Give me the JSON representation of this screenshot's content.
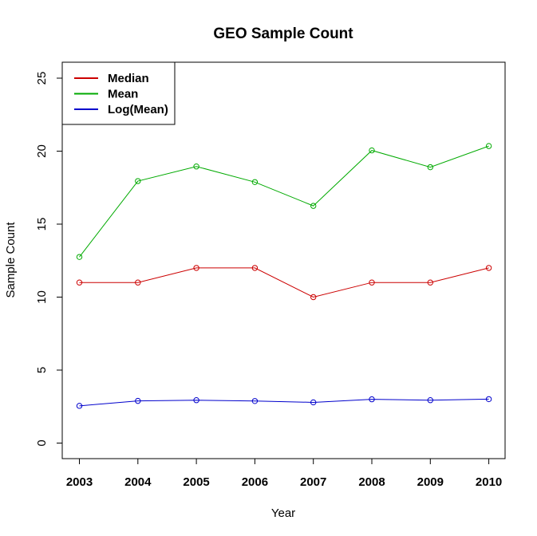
{
  "chart_data": {
    "type": "line",
    "title": "GEO Sample Count",
    "xlabel": "Year",
    "ylabel": "Sample Count",
    "categories": [
      "2003",
      "2004",
      "2005",
      "2006",
      "2007",
      "2008",
      "2009",
      "2010"
    ],
    "series": [
      {
        "name": "Median",
        "color": "#cc0000",
        "values": [
          11,
          11,
          12,
          12,
          10,
          11,
          11,
          12
        ]
      },
      {
        "name": "Mean",
        "color": "#00aa00",
        "values": [
          12.75,
          17.95,
          18.95,
          17.88,
          16.25,
          20.05,
          18.9,
          20.35
        ]
      },
      {
        "name": "Log(Mean)",
        "color": "#0000cc",
        "values": [
          2.55,
          2.89,
          2.94,
          2.88,
          2.79,
          3.0,
          2.94,
          3.01
        ]
      }
    ],
    "ylim": [
      -1,
      26
    ],
    "yticks": [
      "0",
      "5",
      "10",
      "15",
      "20",
      "25"
    ],
    "grid": false,
    "legend_position": "top-left",
    "markers": "open-circle"
  }
}
